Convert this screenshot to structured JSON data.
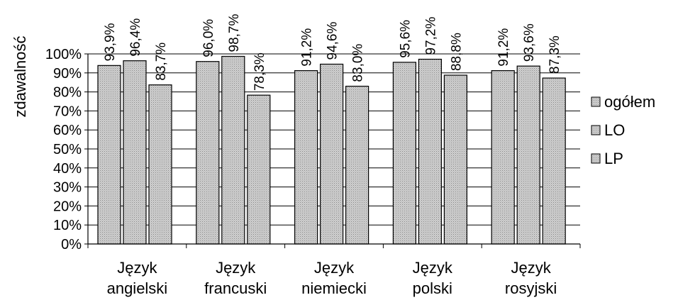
{
  "chart_data": {
    "type": "bar",
    "ylabel": "zdawalność",
    "ylim": [
      0,
      100
    ],
    "yticks": [
      "0%",
      "10%",
      "20%",
      "30%",
      "40%",
      "50%",
      "60%",
      "70%",
      "80%",
      "90%",
      "100%"
    ],
    "categories": [
      [
        "Język",
        "angielski"
      ],
      [
        "Język",
        "francuski"
      ],
      [
        "Język",
        "niemiecki"
      ],
      [
        "Język",
        "polski"
      ],
      [
        "Język",
        "rosyjski"
      ]
    ],
    "series": [
      {
        "name": "ogółem",
        "values": [
          93.9,
          96.0,
          91.2,
          95.6,
          91.2
        ],
        "labels": [
          "93,9%",
          "96,0%",
          "91,2%",
          "95,6%",
          "91,2%"
        ]
      },
      {
        "name": "LO",
        "values": [
          96.4,
          98.7,
          94.6,
          97.2,
          93.6
        ],
        "labels": [
          "96,4%",
          "98,7%",
          "94,6%",
          "97,2%",
          "93,6%"
        ]
      },
      {
        "name": "LP",
        "values": [
          83.7,
          78.3,
          83.0,
          88.8,
          87.3
        ],
        "labels": [
          "83,7%",
          "78,3%",
          "83,0%",
          "88,8%",
          "87,3%"
        ]
      }
    ],
    "grid": true,
    "legend_position": "right",
    "colors": {
      "bar_fill": "#c8c8c8",
      "bar_stroke": "#000000",
      "grid": "#000000"
    }
  }
}
